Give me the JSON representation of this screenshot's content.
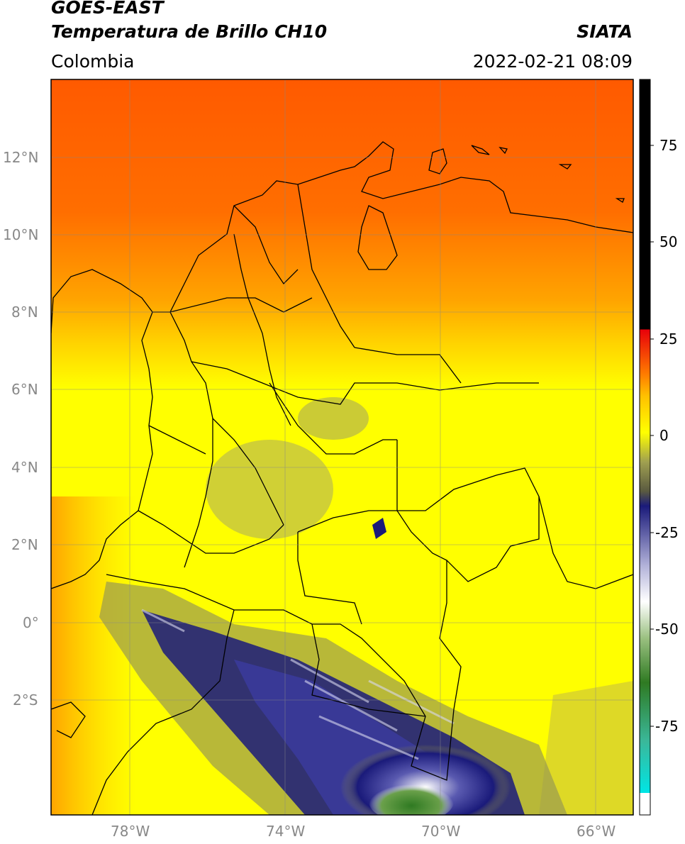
{
  "header": {
    "satellite": "GOES-EAST",
    "product": "Temperatura de Brillo CH10",
    "region": "Colombia",
    "agency": "SIATA",
    "datetime": "2022-02-21 08:09"
  },
  "map": {
    "lat_labels": [
      "12°N",
      "10°N",
      "8°N",
      "6°N",
      "4°N",
      "2°N",
      "0°",
      "2°S"
    ],
    "lon_labels": [
      "78°W",
      "74°W",
      "70°W",
      "66°W"
    ],
    "lat_values": [
      12,
      10,
      8,
      6,
      4,
      2,
      0,
      -2
    ],
    "lon_values": [
      -78,
      -74,
      -70,
      -66
    ],
    "extent": {
      "lon_min": -80,
      "lon_max": -65,
      "lat_min": -5,
      "lat_max": 14
    }
  },
  "colorbar": {
    "ticks": [
      "75",
      "50",
      "25",
      "0",
      "-25",
      "-50",
      "-75"
    ],
    "tick_values": [
      75,
      50,
      25,
      0,
      -25,
      -50,
      -75
    ],
    "range": [
      -95,
      90
    ],
    "colors": {
      "above_zero": "#000000",
      "zero": "#e8000a",
      "warm": "#ff8a00",
      "yellow": "#ffff00",
      "olive": "#8d8d4a",
      "navy": "#1a1a7a",
      "white": "#ffffff",
      "green": "#3c8c28",
      "teal": "#3ab89a",
      "cyan": "#00e5e5"
    }
  }
}
